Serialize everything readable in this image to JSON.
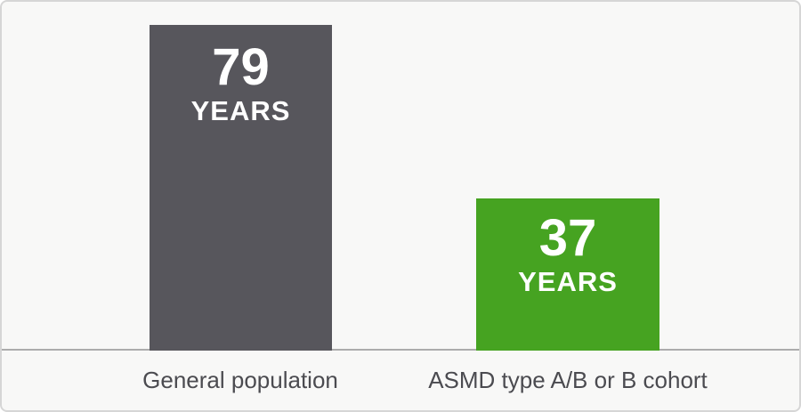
{
  "chart_data": {
    "type": "bar",
    "categories": [
      "General population",
      "ASMD type A/B or B cohort"
    ],
    "values": [
      79,
      37
    ],
    "unit": "YEARS",
    "title": "",
    "xlabel": "",
    "ylabel": "",
    "ylim": [
      0,
      85
    ],
    "grid": false,
    "legend": false,
    "colors": [
      "#57565C",
      "#46A321"
    ],
    "value_label_color": "#FFFFFF",
    "category_label_color": "#4B4B50",
    "baseline_color": "#ACACAC",
    "background_color": "#F8F8F7"
  },
  "bars": [
    {
      "value": "79",
      "unit": "YEARS",
      "category": "General population"
    },
    {
      "value": "37",
      "unit": "YEARS",
      "category": "ASMD type A/B or B cohort"
    }
  ]
}
